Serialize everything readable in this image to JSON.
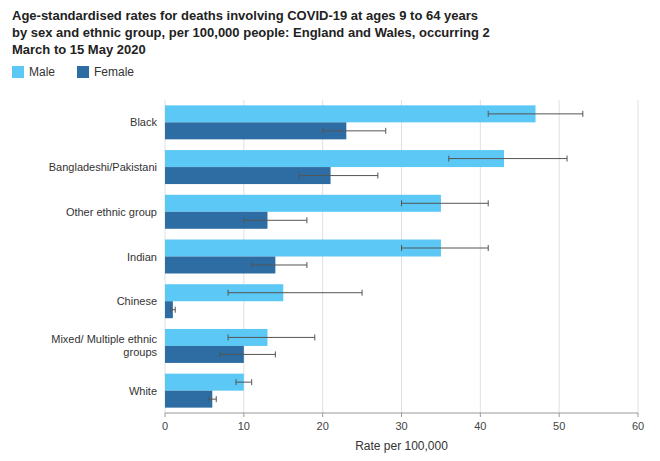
{
  "chart_data": {
    "type": "bar",
    "orientation": "horizontal",
    "title": "Age-standardised rates for deaths involving COVID-19 at ages 9 to 64 years\nby sex and ethnic group, per 100,000 people: England and Wales, occurring 2\nMarch to 15 May 2020",
    "xlabel": "Rate per 100,000",
    "categories": [
      "Black",
      "Bangladeshi/Pakistani",
      "Other ethnic group",
      "Indian",
      "Chinese",
      "Mixed/ Multiple ethnic\ngroups",
      "White"
    ],
    "series": [
      {
        "name": "Male",
        "color": "#5BC8F5",
        "values": [
          47,
          43,
          35,
          35,
          15,
          13,
          10
        ],
        "err_low": [
          6,
          7,
          5,
          5,
          7,
          5,
          1
        ],
        "err_high": [
          6,
          8,
          6,
          6,
          10,
          6,
          1
        ]
      },
      {
        "name": "Female",
        "color": "#2E6DA4",
        "values": [
          23,
          21,
          13,
          14,
          1,
          10,
          6
        ],
        "err_low": [
          3,
          4,
          3,
          3,
          0.3,
          3,
          0.5
        ],
        "err_high": [
          5,
          6,
          5,
          4,
          0.3,
          4,
          0.5
        ]
      }
    ],
    "xlim": [
      0,
      60
    ],
    "xticks": [
      0,
      10,
      20,
      30,
      40,
      50,
      60
    ],
    "grid": true,
    "legend": "upper left"
  }
}
